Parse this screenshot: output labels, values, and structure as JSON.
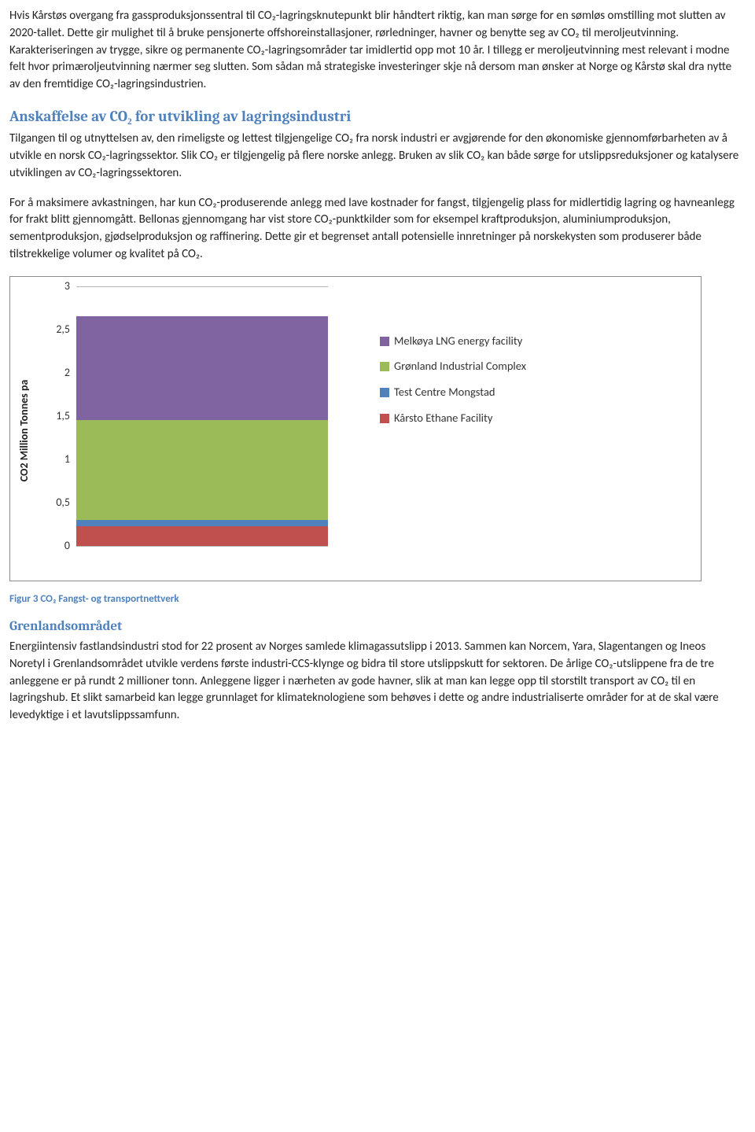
{
  "p1": "Hvis Kårstøs overgang fra gassproduksjonssentral til CO₂-lagringsknutepunkt blir håndtert riktig, kan man sørge for en sømløs omstilling mot slutten av 2020-tallet. Dette gir mulighet til å bruke pensjonerte offshoreinstallasjoner, rørledninger, havner og benytte seg av CO₂ til meroljeutvinning. Karakteriseringen av trygge, sikre og permanente CO₂-lagringsområder tar imidlertid opp mot 10 år. I tillegg er meroljeutvinning mest relevant i modne felt hvor primæroljeutvinning nærmer seg slutten. Som sådan må strategiske investeringer skje nå dersom man ønsker at Norge og Kårstø skal dra nytte av den fremtidige CO₂-lagringsindustrien.",
  "h1": "Anskaffelse av CO₂ for utvikling av lagringsindustri",
  "p2": "Tilgangen til og utnyttelsen av, den rimeligste og lettest tilgjengelige CO₂ fra norsk industri er avgjørende for den økonomiske gjennomførbarheten av å utvikle en norsk CO₂-lagringssektor. Slik CO₂ er tilgjengelig på flere norske anlegg. Bruken av slik CO₂ kan både sørge for utslippsreduksjoner og katalysere utviklingen av CO₂-lagringssektoren.",
  "p3": "For å maksimere avkastningen, har kun CO₂-produserende anlegg med lave kostnader for fangst, tilgjengelig plass for midlertidig lagring og havneanlegg for frakt blitt gjennomgått. Bellonas gjennomgang har vist store CO₂-punktkilder som for eksempel kraftproduksjon, aluminiumproduksjon, sementproduksjon, gjødselproduksjon og raffinering. Dette gir et begrenset antall potensielle innretninger på norskekysten som produserer både tilstrekkelige volumer og kvalitet på CO₂.",
  "figcaption": "Figur 3 CO₂ Fangst- og transportnettverk",
  "h2": "Grenlandsområdet",
  "p4": "Energiintensiv fastlandsindustri stod for 22 prosent av Norges samlede klimagassutslipp i 2013. Sammen kan Norcem, Yara, Slagentangen og Ineos Noretyl i Grenlandsområdet utvikle verdens første industri-CCS-klynge og bidra til store utslippskutt for sektoren. De årlige CO₂-utslippene fra de tre anleggene er på rundt 2 millioner tonn. Anleggene ligger i nærheten av gode havner, slik at man kan legge opp til storstilt transport av CO₂ til en lagringshub. Et slikt samarbeid kan legge grunnlaget for klimateknologiene som behøves i dette og andre industrialiserte områder for at de skal være levedyktige i et lavutslippssamfunn.",
  "chart": {
    "type": "stacked_bar",
    "ylabel": "CO2 Million Tonnes pa",
    "ylim": [
      0,
      3
    ],
    "ytick_step": 0.5,
    "yticks": [
      "0",
      "0,5",
      "1",
      "1,5",
      "2",
      "2,5",
      "3"
    ],
    "bar_color_bg": "#ffffff",
    "grid_color": "#b6b6b6",
    "series": [
      {
        "label": "Melkøya LNG energy facility",
        "color": "#8064a2",
        "value": 1.2
      },
      {
        "label": "Grønland Industrial Complex",
        "color": "#9bbb59",
        "value": 1.15
      },
      {
        "label": "Test Centre Mongstad",
        "color": "#4f81bd",
        "value": 0.08
      },
      {
        "label": "Kårsto Ethane Facility",
        "color": "#c0504d",
        "value": 0.22
      }
    ],
    "legend_order": [
      0,
      1,
      2,
      3
    ],
    "stack_order_bottom_to_top": [
      3,
      2,
      1,
      0
    ]
  }
}
